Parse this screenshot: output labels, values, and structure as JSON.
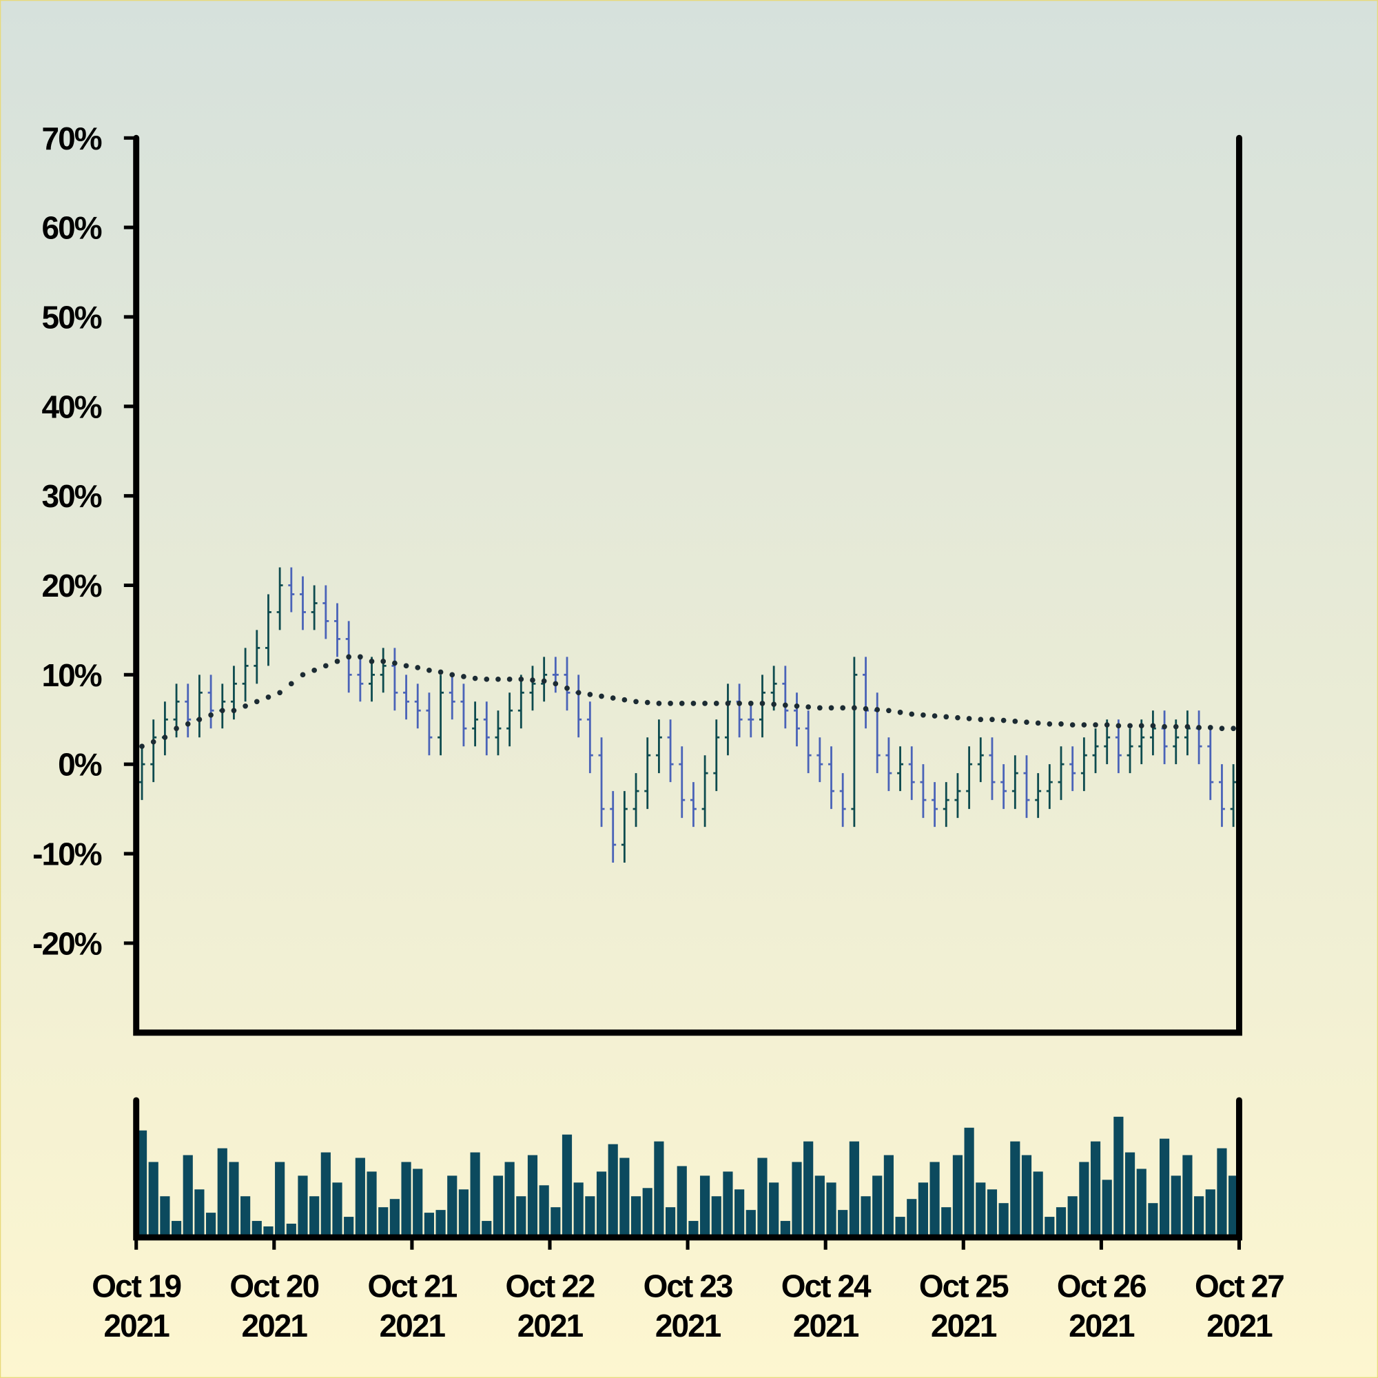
{
  "chart_data": {
    "type": "ohlc",
    "xlim": [
      0,
      192
    ],
    "xticks": [
      {
        "value": 0,
        "label": "Oct 19\n2021"
      },
      {
        "value": 24,
        "label": "Oct 20\n2021"
      },
      {
        "value": 48,
        "label": "Oct 21\n2021"
      },
      {
        "value": 72,
        "label": "Oct 22\n2021"
      },
      {
        "value": 96,
        "label": "Oct 23\n2021"
      },
      {
        "value": 120,
        "label": "Oct 24\n2021"
      },
      {
        "value": 144,
        "label": "Oct 25\n2021"
      },
      {
        "value": 168,
        "label": "Oct 26\n2021"
      },
      {
        "value": 192,
        "label": "Oct 27\n2021"
      }
    ],
    "ylim": [
      -30,
      70
    ],
    "yticks": [
      {
        "value": -20,
        "label": "-20%"
      },
      {
        "value": -10,
        "label": "-10%"
      },
      {
        "value": 0,
        "label": "0%"
      },
      {
        "value": 10,
        "label": "10%"
      },
      {
        "value": 20,
        "label": "20%"
      },
      {
        "value": 30,
        "label": "30%"
      },
      {
        "value": 40,
        "label": "40%"
      },
      {
        "value": 50,
        "label": "50%"
      },
      {
        "value": 60,
        "label": "60%"
      },
      {
        "value": 70,
        "label": "70%"
      }
    ],
    "volume_lim": [
      0,
      100
    ],
    "up_color": "#0e4b4f",
    "down_color": "#4a63b8",
    "ma_color": "#1c2b33",
    "volume_color": "#0c4a5e",
    "x": [
      1,
      3,
      5,
      7,
      9,
      11,
      13,
      15,
      17,
      19,
      21,
      23,
      25,
      27,
      29,
      31,
      33,
      35,
      37,
      39,
      41,
      43,
      45,
      47,
      49,
      51,
      53,
      55,
      57,
      59,
      61,
      63,
      65,
      67,
      69,
      71,
      73,
      75,
      77,
      79,
      81,
      83,
      85,
      87,
      89,
      91,
      93,
      95,
      97,
      99,
      101,
      103,
      105,
      107,
      109,
      111,
      113,
      115,
      117,
      119,
      121,
      123,
      125,
      127,
      129,
      131,
      133,
      135,
      137,
      139,
      141,
      143,
      145,
      147,
      149,
      151,
      153,
      155,
      157,
      159,
      161,
      163,
      165,
      167,
      169,
      171,
      173,
      175,
      177,
      179,
      181,
      183,
      185,
      187,
      189,
      191
    ],
    "open": [
      -2,
      0,
      3,
      5,
      7,
      5,
      8,
      6,
      7,
      9,
      11,
      13,
      17,
      20,
      19,
      17,
      18,
      16,
      14,
      10,
      9,
      10,
      11,
      8,
      7,
      6,
      3,
      8,
      7,
      4,
      5,
      3,
      4,
      6,
      8,
      9,
      10,
      10,
      8,
      5,
      1,
      -5,
      -9,
      -5,
      -3,
      1,
      3,
      0,
      -4,
      -5,
      -1,
      3,
      7,
      5,
      5,
      8,
      9,
      6,
      4,
      1,
      0,
      -3,
      -5,
      10,
      6,
      1,
      -1,
      0,
      -2,
      -4,
      -5,
      -4,
      -3,
      0,
      1,
      -2,
      -3,
      -1,
      -4,
      -3,
      -2,
      0,
      -1,
      1,
      2,
      3,
      1,
      2,
      3,
      4,
      2,
      3,
      4,
      2,
      -2,
      -5
    ],
    "high": [
      2,
      5,
      7,
      9,
      9,
      10,
      10,
      9,
      11,
      13,
      15,
      19,
      22,
      22,
      21,
      20,
      20,
      18,
      16,
      12,
      12,
      13,
      13,
      10,
      9,
      8,
      10,
      10,
      9,
      7,
      7,
      6,
      8,
      10,
      11,
      12,
      12,
      12,
      10,
      7,
      3,
      -3,
      -3,
      -1,
      3,
      5,
      5,
      2,
      -2,
      1,
      5,
      9,
      9,
      7,
      10,
      11,
      11,
      8,
      6,
      3,
      2,
      -1,
      12,
      12,
      8,
      3,
      2,
      2,
      0,
      -2,
      -2,
      -1,
      2,
      3,
      3,
      0,
      1,
      1,
      -1,
      0,
      2,
      2,
      3,
      4,
      5,
      5,
      4,
      5,
      6,
      6,
      5,
      6,
      6,
      4,
      0,
      0
    ],
    "low": [
      -4,
      -2,
      1,
      3,
      3,
      3,
      4,
      4,
      5,
      7,
      9,
      11,
      15,
      17,
      15,
      15,
      14,
      12,
      8,
      7,
      7,
      8,
      6,
      5,
      4,
      1,
      1,
      5,
      2,
      2,
      1,
      1,
      2,
      4,
      6,
      7,
      8,
      6,
      3,
      -1,
      -7,
      -11,
      -11,
      -7,
      -5,
      -1,
      -2,
      -6,
      -7,
      -7,
      -3,
      1,
      3,
      3,
      3,
      6,
      4,
      2,
      -1,
      -2,
      -5,
      -7,
      -7,
      4,
      -1,
      -3,
      -3,
      -4,
      -6,
      -7,
      -7,
      -6,
      -5,
      -2,
      -4,
      -5,
      -5,
      -6,
      -6,
      -5,
      -4,
      -3,
      -3,
      -1,
      0,
      -1,
      -1,
      0,
      1,
      0,
      0,
      1,
      0,
      -4,
      -7,
      -7
    ],
    "close": [
      0,
      3,
      5,
      7,
      5,
      8,
      6,
      7,
      9,
      11,
      13,
      17,
      20,
      19,
      17,
      18,
      16,
      14,
      10,
      9,
      10,
      11,
      8,
      7,
      6,
      3,
      8,
      7,
      4,
      5,
      3,
      4,
      6,
      8,
      9,
      10,
      10,
      8,
      5,
      1,
      -5,
      -9,
      -5,
      -3,
      1,
      3,
      0,
      -4,
      -5,
      -1,
      3,
      7,
      5,
      5,
      8,
      9,
      6,
      4,
      1,
      0,
      -3,
      -5,
      10,
      6,
      1,
      -1,
      0,
      -2,
      -4,
      -5,
      -4,
      -3,
      0,
      1,
      -2,
      -3,
      -1,
      -4,
      -3,
      -2,
      0,
      -1,
      1,
      2,
      3,
      1,
      2,
      3,
      4,
      2,
      3,
      4,
      2,
      -2,
      -5,
      -2
    ],
    "moving_average": [
      2,
      2.5,
      3,
      4,
      4.5,
      5,
      5.5,
      6,
      6,
      6.5,
      7,
      7.5,
      8,
      9,
      10,
      10.5,
      11,
      11.5,
      12,
      12,
      11.5,
      11.5,
      11.3,
      11,
      10.8,
      10.5,
      10.3,
      10,
      9.8,
      9.6,
      9.5,
      9.5,
      9.5,
      9.5,
      9.4,
      9.3,
      9,
      8.5,
      8,
      7.8,
      7.6,
      7.4,
      7.2,
      7,
      6.9,
      6.8,
      6.8,
      6.8,
      6.8,
      6.8,
      6.8,
      6.8,
      6.8,
      6.8,
      6.8,
      6.7,
      6.6,
      6.5,
      6.4,
      6.3,
      6.3,
      6.3,
      6.3,
      6.2,
      6.1,
      6,
      5.8,
      5.6,
      5.5,
      5.4,
      5.3,
      5.2,
      5.1,
      5,
      5,
      4.9,
      4.8,
      4.7,
      4.6,
      4.5,
      4.5,
      4.4,
      4.4,
      4.4,
      4.4,
      4.3,
      4.3,
      4.3,
      4.3,
      4.2,
      4.2,
      4.2,
      4.1,
      4.1,
      4,
      4
    ],
    "volume": [
      78,
      55,
      30,
      12,
      60,
      35,
      18,
      65,
      55,
      30,
      12,
      8,
      55,
      10,
      45,
      30,
      62,
      40,
      15,
      58,
      48,
      22,
      28,
      55,
      50,
      18,
      20,
      45,
      35,
      62,
      12,
      45,
      55,
      30,
      60,
      38,
      22,
      75,
      40,
      30,
      48,
      68,
      58,
      30,
      36,
      70,
      22,
      52,
      12,
      45,
      30,
      48,
      35,
      20,
      58,
      40,
      12,
      55,
      70,
      45,
      40,
      20,
      70,
      30,
      45,
      60,
      15,
      28,
      40,
      55,
      22,
      60,
      80,
      40,
      35,
      25,
      70,
      60,
      48,
      15,
      22,
      30,
      55,
      70,
      42,
      88,
      62,
      50,
      25,
      72,
      45,
      60,
      30,
      35,
      65,
      45
    ]
  }
}
